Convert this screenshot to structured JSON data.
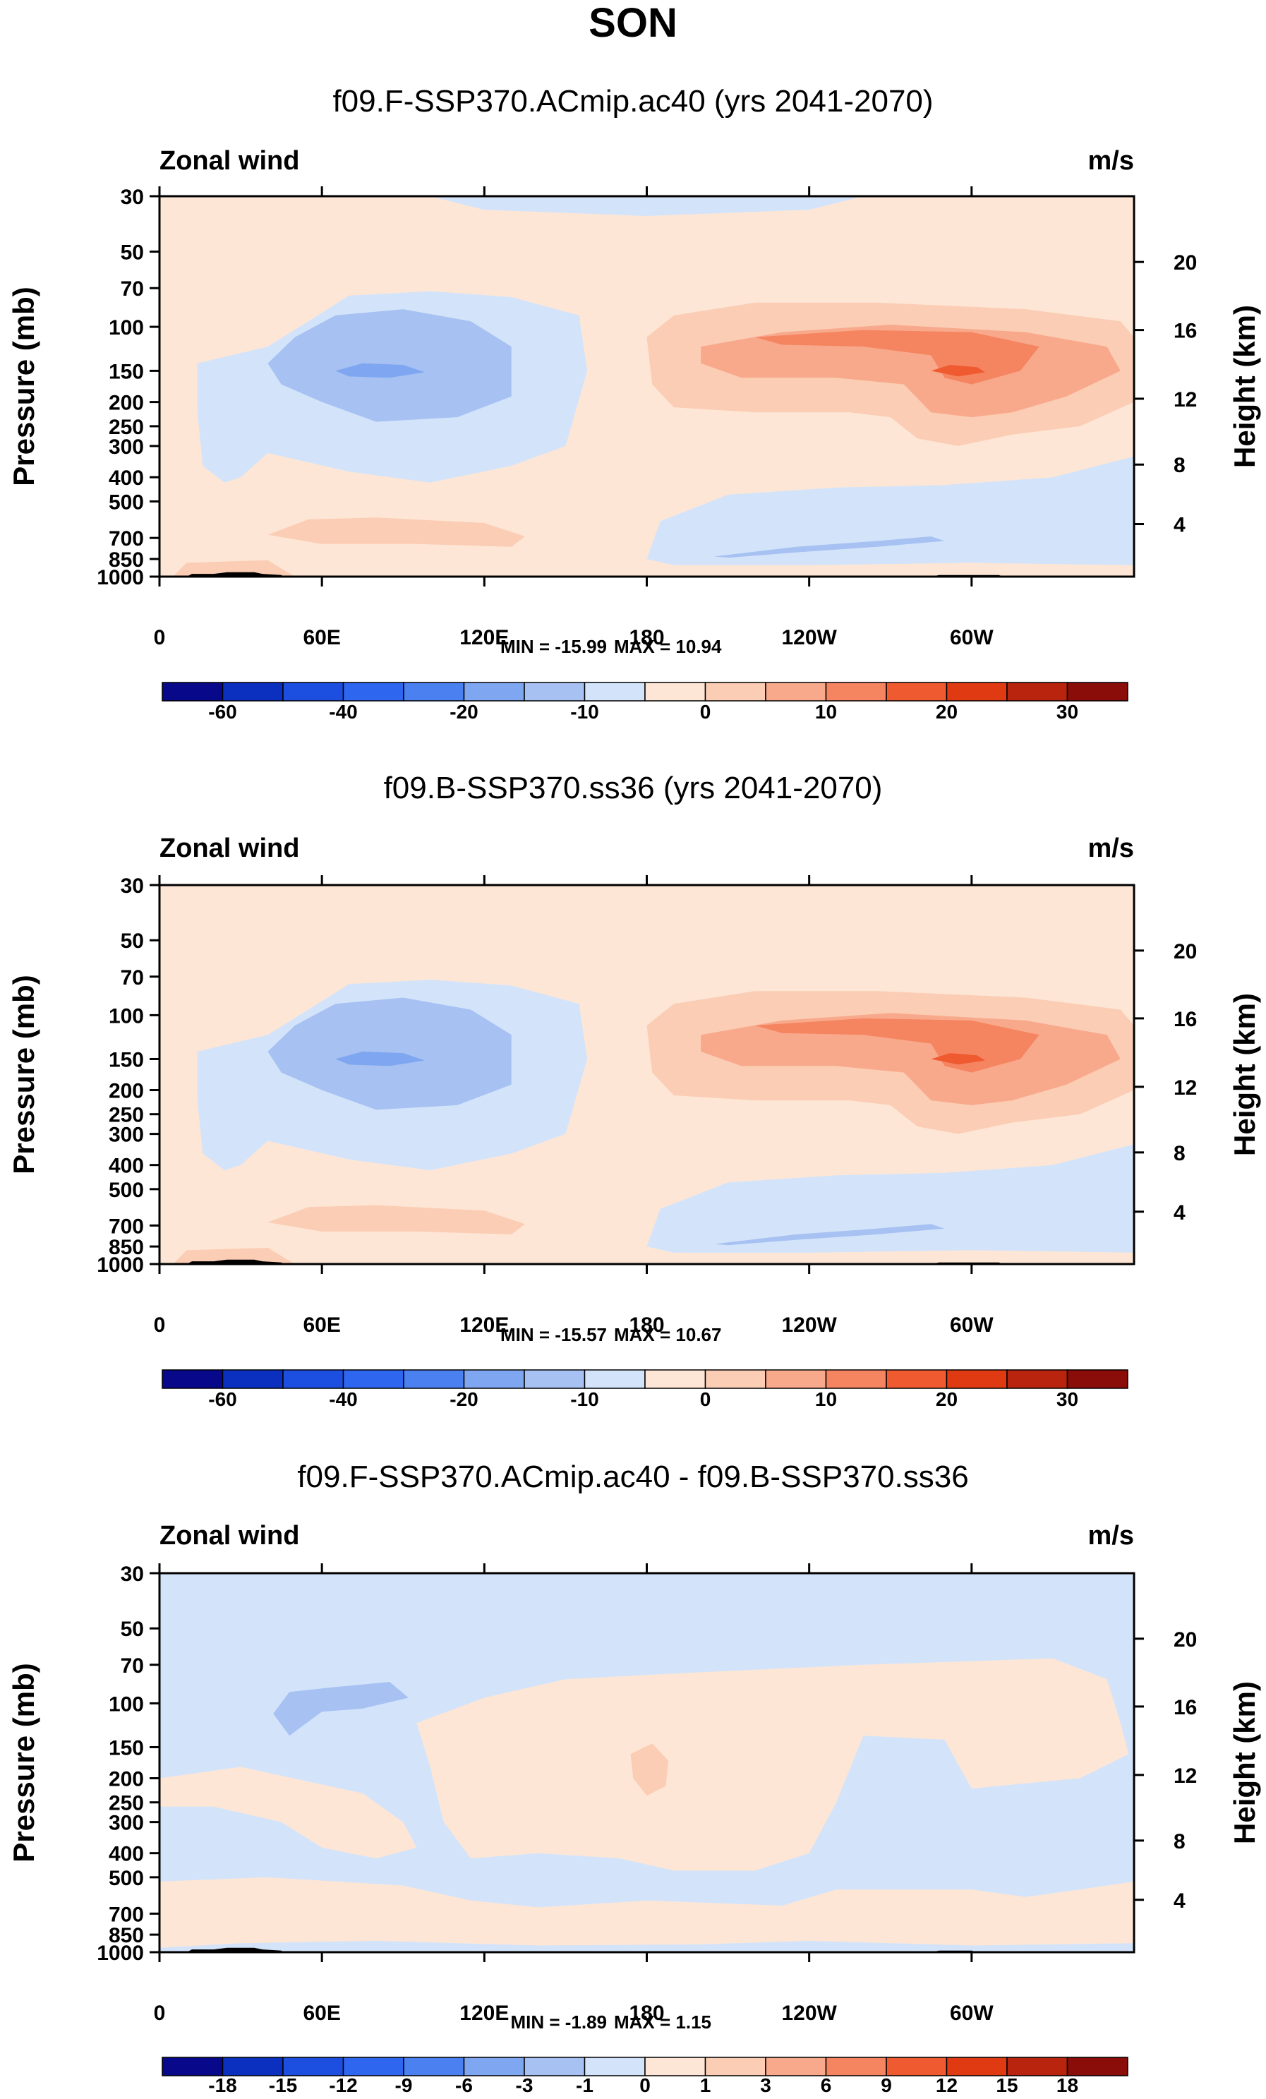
{
  "season": "SON",
  "palette": {
    "land": "#000000",
    "frame": "#000000",
    "blues": [
      "#08088a",
      "#0b2fbf",
      "#1c4fe0",
      "#2f66f0",
      "#4a80f0",
      "#7fa6f0",
      "#a7c2f2",
      "#d3e4fa"
    ],
    "reds": [
      "#fde6d6",
      "#fbcdb4",
      "#f8a98c",
      "#f58560",
      "#f05a30",
      "#e03a12",
      "#b8240d",
      "#8a0d0a"
    ]
  },
  "chart_data": [
    {
      "type": "heatmap",
      "title": "f09.F-SSP370.ACmip.ac40 (yrs 2041-2070)",
      "left_label": "Zonal wind",
      "right_label": "m/s",
      "ylabel": "Pressure (mb)",
      "ylabel_right": "Height (km)",
      "y_ticks": [
        "30",
        "50",
        "70",
        "100",
        "150",
        "200",
        "250",
        "300",
        "400",
        "500",
        "700",
        "850",
        "1000"
      ],
      "y_ticks_right": [
        "20",
        "16",
        "12",
        "8",
        "4"
      ],
      "x_ticks": [
        "0",
        "60E",
        "120E",
        "180",
        "120W",
        "60W"
      ],
      "min_label": "MIN = -15.99",
      "max_label": "MAX =  10.94",
      "min": -15.99,
      "max": 10.94,
      "colorbar_labels": [
        "-60",
        "-40",
        "-20",
        "-10",
        "0",
        "10",
        "20",
        "30"
      ],
      "background_level": "0 to 5",
      "features": [
        {
          "kind": "westward jet core",
          "center_lon": 80,
          "center_p": 150,
          "level_range": "-15 to -10"
        },
        {
          "kind": "eastward jet core",
          "center_lon": 290,
          "center_p": 150,
          "level_range": "10 to 15"
        }
      ]
    },
    {
      "type": "heatmap",
      "title": "f09.B-SSP370.ss36 (yrs 2041-2070)",
      "left_label": "Zonal wind",
      "right_label": "m/s",
      "ylabel": "Pressure (mb)",
      "ylabel_right": "Height (km)",
      "y_ticks": [
        "30",
        "50",
        "70",
        "100",
        "150",
        "200",
        "250",
        "300",
        "400",
        "500",
        "700",
        "850",
        "1000"
      ],
      "y_ticks_right": [
        "20",
        "16",
        "12",
        "8",
        "4"
      ],
      "x_ticks": [
        "0",
        "60E",
        "120E",
        "180",
        "120W",
        "60W"
      ],
      "min_label": "MIN = -15.57",
      "max_label": "MAX =  10.67",
      "min": -15.57,
      "max": 10.67,
      "colorbar_labels": [
        "-60",
        "-40",
        "-20",
        "-10",
        "0",
        "10",
        "20",
        "30"
      ],
      "background_level": "0 to 5",
      "features": [
        {
          "kind": "westward jet core",
          "center_lon": 80,
          "center_p": 150,
          "level_range": "-15 to -10"
        },
        {
          "kind": "eastward jet core",
          "center_lon": 290,
          "center_p": 150,
          "level_range": "10 to 15"
        }
      ]
    },
    {
      "type": "heatmap",
      "title": "f09.F-SSP370.ACmip.ac40 - f09.B-SSP370.ss36",
      "left_label": "Zonal wind",
      "right_label": "m/s",
      "ylabel": "Pressure (mb)",
      "ylabel_right": "Height (km)",
      "y_ticks": [
        "30",
        "50",
        "70",
        "100",
        "150",
        "200",
        "250",
        "300",
        "400",
        "500",
        "700",
        "850",
        "1000"
      ],
      "y_ticks_right": [
        "20",
        "16",
        "12",
        "8",
        "4"
      ],
      "x_ticks": [
        "0",
        "60E",
        "120E",
        "180",
        "120W",
        "60W"
      ],
      "min_label": "MIN =  -1.89",
      "max_label": "MAX =   1.15",
      "min": -1.89,
      "max": 1.15,
      "colorbar_labels": [
        "-18",
        "-15",
        "-12",
        "-9",
        "-6",
        "-3",
        "-1",
        "0",
        "1",
        "3",
        "6",
        "9",
        "12",
        "15",
        "18"
      ],
      "background_level": "-1 to 0",
      "features": [
        {
          "kind": "negative anomaly",
          "center_lon": 70,
          "center_p": 100,
          "level_range": "-3 to -1"
        },
        {
          "kind": "positive anomaly",
          "center_lon": 180,
          "center_p": 180,
          "level_range": "1 to 3"
        }
      ]
    }
  ]
}
